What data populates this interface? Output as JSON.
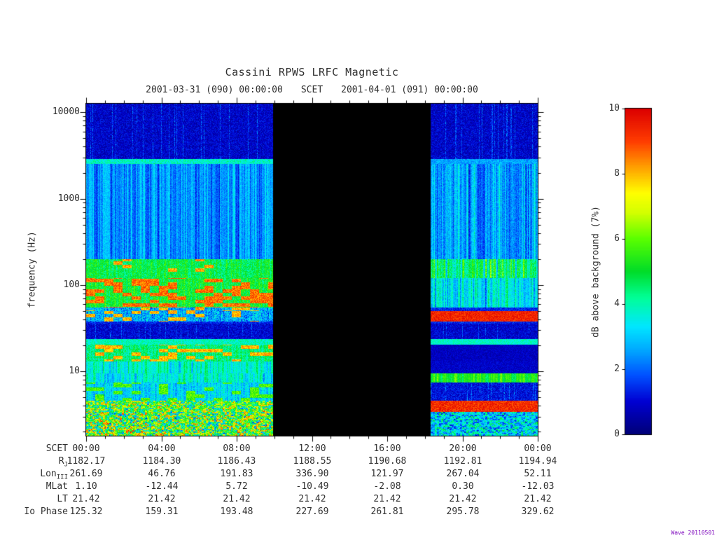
{
  "header": {
    "title": "Cassini RPWS LRFC Magnetic",
    "subtitle_left": "2001-03-31 (090) 00:00:00",
    "subtitle_mid": "SCET",
    "subtitle_right": "2001-04-01 (091) 00:00:00"
  },
  "y_axis": {
    "label": "frequency (Hz)",
    "ticks": [
      {
        "f": 10000,
        "text": "10000"
      },
      {
        "f": 1000,
        "text": "1000"
      },
      {
        "f": 100,
        "text": "100"
      },
      {
        "f": 10,
        "text": "10"
      }
    ]
  },
  "colorbar": {
    "label": "dB above background (7%)",
    "ticks": [
      {
        "v": 10,
        "text": "10"
      },
      {
        "v": 8,
        "text": "8"
      },
      {
        "v": 6,
        "text": "6"
      },
      {
        "v": 4,
        "text": "4"
      },
      {
        "v": 2,
        "text": "2"
      },
      {
        "v": 0,
        "text": "0"
      }
    ]
  },
  "table": {
    "rows": [
      {
        "label": "SCET",
        "sub": "",
        "values": [
          "00:00",
          "04:00",
          "08:00",
          "12:00",
          "16:00",
          "20:00",
          "00:00"
        ]
      },
      {
        "label": "R",
        "sub": "J",
        "values": [
          "1182.17",
          "1184.30",
          "1186.43",
          "1188.55",
          "1190.68",
          "1192.81",
          "1194.94"
        ]
      },
      {
        "label": "Lon",
        "sub": "III",
        "values": [
          "261.69",
          "46.76",
          "191.83",
          "336.90",
          "121.97",
          "267.04",
          "52.11"
        ]
      },
      {
        "label": "MLat",
        "sub": "",
        "values": [
          "1.10",
          "-12.44",
          "5.72",
          "-10.49",
          "-2.08",
          "0.30",
          "-12.03"
        ]
      },
      {
        "label": "LT",
        "sub": "",
        "values": [
          "21.42",
          "21.42",
          "21.42",
          "21.42",
          "21.42",
          "21.42",
          "21.42"
        ]
      },
      {
        "label": "Io Phase",
        "sub": "",
        "values": [
          "125.32",
          "159.31",
          "193.48",
          "227.69",
          "261.81",
          "295.78",
          "329.62"
        ]
      }
    ]
  },
  "stamp": "Wave 20110501",
  "chart_data": {
    "type": "heatmap",
    "title": "Cassini RPWS LRFC Magnetic",
    "xlabel": "SCET",
    "ylabel": "frequency (Hz)",
    "x_range_hours": [
      0,
      24
    ],
    "x_tick_hours": [
      0,
      4,
      8,
      12,
      16,
      20,
      24
    ],
    "y_scale": "log",
    "y_range_hz": [
      1.8,
      12600
    ],
    "y_tick_hz": [
      10,
      100,
      1000,
      10000
    ],
    "z_label": "dB above background (7%)",
    "z_range_db": [
      0,
      10
    ],
    "z_ticks_db": [
      0,
      2,
      4,
      6,
      8,
      10
    ],
    "data_gap_hours": [
      9.93,
      18.32
    ],
    "colormap": [
      [
        0.0,
        "#000078"
      ],
      [
        0.1,
        "#0000d2"
      ],
      [
        0.18,
        "#0050ff"
      ],
      [
        0.26,
        "#00aaff"
      ],
      [
        0.33,
        "#00e6ff"
      ],
      [
        0.42,
        "#00ff96"
      ],
      [
        0.5,
        "#00dc28"
      ],
      [
        0.6,
        "#5aff00"
      ],
      [
        0.68,
        "#d2ff00"
      ],
      [
        0.74,
        "#ffff00"
      ],
      [
        0.82,
        "#ffa000"
      ],
      [
        0.9,
        "#ff3c00"
      ],
      [
        1.0,
        "#dc0000"
      ]
    ],
    "bands": [
      {
        "f": [
          2880,
          12600
        ],
        "desc": "faint blue background noise",
        "L": [
          "noise",
          0.3,
          1.5
        ],
        "R": [
          "noise",
          0.3,
          1.5
        ]
      },
      {
        "f": [
          2550,
          2880
        ],
        "desc": "narrowband tone near 2.7 kHz",
        "L": [
          "flat",
          3.0,
          4.6
        ],
        "R": [
          "flat",
          2.0,
          3.2
        ]
      },
      {
        "f": [
          200,
          2550
        ],
        "desc": "striated blue-cyan emission",
        "L": [
          "stripes",
          0.7,
          3.8
        ],
        "R": [
          "stripes",
          0.7,
          4.2
        ]
      },
      {
        "f": [
          120,
          200
        ],
        "desc": "green band near 150 Hz",
        "L": [
          "blobs",
          3.4,
          9.0,
          0.06
        ],
        "R": [
          "stripes",
          1.8,
          6.8
        ]
      },
      {
        "f": [
          55,
          120
        ],
        "desc": "intense red patches 55-110 Hz before gap",
        "L": [
          "blobs",
          3.5,
          9.4,
          0.45
        ],
        "R": [
          "stripes",
          1.2,
          5.2
        ]
      },
      {
        "f": [
          50,
          55
        ],
        "desc": "mixed patches",
        "L": [
          "blobs",
          0.9,
          8.8,
          0.2
        ],
        "R": [
          "flat",
          0.8,
          2.0
        ]
      },
      {
        "f": [
          38,
          50
        ],
        "desc": "intense red band 38-50 Hz after gap",
        "L": [
          "blobs",
          0.9,
          8.8,
          0.22
        ],
        "R": [
          "flat",
          8.8,
          10.0
        ]
      },
      {
        "f": [
          36,
          38
        ],
        "desc": "quiet",
        "L": [
          "flat",
          0.8,
          2.0
        ],
        "R": [
          "flat",
          0.8,
          2.0
        ]
      },
      {
        "f": [
          23.5,
          36
        ],
        "desc": "quiet dark band",
        "L": [
          "noise",
          0.4,
          1.6
        ],
        "R": [
          "noise",
          0.4,
          1.5
        ]
      },
      {
        "f": [
          20.5,
          23.5
        ],
        "desc": "thin cyan line near 22 Hz",
        "L": [
          "flat",
          3.2,
          4.6
        ],
        "R": [
          "flat",
          3.2,
          4.4
        ]
      },
      {
        "f": [
          13,
          20.5
        ],
        "desc": "mixed green/red patches before gap",
        "L": [
          "blobs",
          3.0,
          8.8,
          0.3
        ],
        "R": [
          "flat",
          0.4,
          1.2
        ]
      },
      {
        "f": [
          9.5,
          13
        ],
        "desc": "moderate striping before gap",
        "L": [
          "stripes",
          2.0,
          5.2
        ],
        "R": [
          "flat",
          0.5,
          1.3
        ]
      },
      {
        "f": [
          7.4,
          9.5
        ],
        "desc": "green band 8-9 Hz after gap",
        "L": [
          "stripes",
          1.6,
          5.0
        ],
        "R": [
          "stripes",
          3.8,
          6.6
        ]
      },
      {
        "f": [
          4.6,
          7.4
        ],
        "desc": "patchy moderate emission before gap",
        "L": [
          "blobs",
          1.8,
          6.6,
          0.3
        ],
        "R": [
          "noise",
          0.5,
          1.8
        ]
      },
      {
        "f": [
          3.4,
          4.6
        ],
        "desc": "intense red band near 4 Hz after gap",
        "L": [
          "speckle",
          1.5,
          9.5
        ],
        "R": [
          "flat",
          8.6,
          10.0
        ]
      },
      {
        "f": [
          1.8,
          3.4
        ],
        "desc": "broadband colorful speckle before gap",
        "L": [
          "speckle",
          1.0,
          10.0
        ],
        "R": [
          "speckle",
          0.8,
          5.5
        ]
      }
    ]
  }
}
